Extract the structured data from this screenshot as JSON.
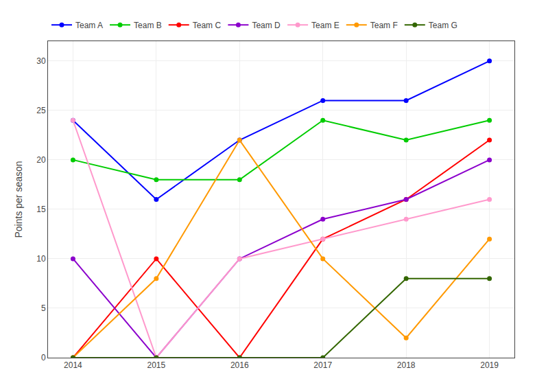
{
  "chart_data": {
    "type": "line",
    "x": [
      2014,
      2015,
      2016,
      2017,
      2018,
      2019
    ],
    "series": [
      {
        "name": "Team A",
        "color": "#0000ff",
        "values": [
          24,
          16,
          22,
          26,
          26,
          30
        ]
      },
      {
        "name": "Team B",
        "color": "#00cc00",
        "values": [
          20,
          18,
          18,
          24,
          22,
          24
        ]
      },
      {
        "name": "Team C",
        "color": "#ff0000",
        "values": [
          0,
          10,
          0,
          12,
          16,
          22
        ]
      },
      {
        "name": "Team D",
        "color": "#8b00cc",
        "values": [
          10,
          0,
          10,
          14,
          16,
          20
        ]
      },
      {
        "name": "Team E",
        "color": "#ff99cc",
        "values": [
          24,
          0,
          10,
          12,
          14,
          16
        ]
      },
      {
        "name": "Team F",
        "color": "#ff9900",
        "values": [
          0,
          8,
          22,
          10,
          2,
          12
        ]
      },
      {
        "name": "Team G",
        "color": "#336600",
        "values": [
          0,
          0,
          0,
          0,
          8,
          8
        ]
      }
    ],
    "ylabel": "Points per season",
    "ylim": [
      0,
      32
    ],
    "yticks": [
      0,
      5,
      10,
      15,
      20,
      25,
      30
    ],
    "xlim": [
      2013.7,
      2019.3
    ],
    "xticks": [
      2014,
      2015,
      2016,
      2017,
      2018,
      2019
    ],
    "grid": true,
    "legend": "upper left",
    "marker": "circle"
  }
}
